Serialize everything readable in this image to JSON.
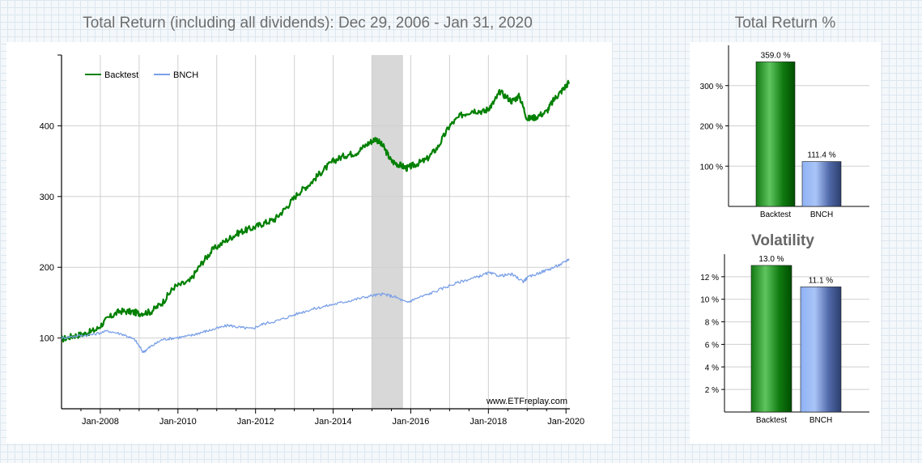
{
  "colors": {
    "backtest": "#008000",
    "bench": "#7aa0e8",
    "highlight": "#d8d8d8",
    "grid": "#cfcfcf"
  },
  "main_chart": {
    "title": "Total Return (including all dividends): Dec 29, 2006 - Jan 31, 2020",
    "watermark": "www.ETFreplay.com",
    "legend": [
      "Backtest",
      "BNCH"
    ]
  },
  "side_charts": {
    "total_return_title": "Total Return %",
    "volatility_title": "Volatility"
  },
  "chart_data": [
    {
      "id": "total-return-line",
      "type": "line",
      "title": "Total Return (including all dividends): Dec 29, 2006 - Jan 31, 2020",
      "xlabel": "",
      "ylabel": "",
      "x_tick_labels": [
        "Jan-2008",
        "Jan-2010",
        "Jan-2012",
        "Jan-2014",
        "Jan-2016",
        "Jan-2018",
        "Jan-2020"
      ],
      "x_tick_values": [
        2008,
        2010,
        2012,
        2014,
        2016,
        2018,
        2020
      ],
      "y_tick_labels": [
        "100",
        "200",
        "300",
        "400"
      ],
      "y_tick_values": [
        100,
        200,
        300,
        400
      ],
      "xlim": [
        2007.0,
        2020.1
      ],
      "ylim": [
        0,
        500
      ],
      "grid": true,
      "legend_position": "top-left",
      "highlight_region": [
        2015.0,
        2015.8
      ],
      "series": [
        {
          "name": "Backtest",
          "x": [
            2007.0,
            2007.3,
            2007.6,
            2007.9,
            2008.2,
            2008.5,
            2008.8,
            2009.0,
            2009.3,
            2009.6,
            2009.9,
            2010.3,
            2010.6,
            2010.9,
            2011.3,
            2011.6,
            2011.9,
            2012.2,
            2012.5,
            2012.8,
            2013.1,
            2013.4,
            2013.7,
            2014.0,
            2014.3,
            2014.6,
            2014.9,
            2015.1,
            2015.3,
            2015.5,
            2015.7,
            2015.9,
            2016.1,
            2016.4,
            2016.7,
            2017.0,
            2017.3,
            2017.6,
            2017.9,
            2018.1,
            2018.3,
            2018.6,
            2018.8,
            2019.0,
            2019.2,
            2019.5,
            2019.7,
            2019.9,
            2020.08
          ],
          "values": [
            98,
            103,
            106,
            112,
            128,
            138,
            137,
            135,
            137,
            150,
            172,
            180,
            205,
            225,
            240,
            250,
            255,
            262,
            268,
            285,
            305,
            318,
            335,
            350,
            358,
            362,
            375,
            382,
            370,
            350,
            345,
            340,
            345,
            352,
            370,
            400,
            415,
            422,
            420,
            430,
            448,
            435,
            442,
            410,
            412,
            420,
            438,
            450,
            462
          ]
        },
        {
          "name": "BNCH",
          "x": [
            2007.0,
            2007.4,
            2007.8,
            2008.2,
            2008.6,
            2008.9,
            2009.1,
            2009.3,
            2009.6,
            2009.9,
            2010.3,
            2010.6,
            2010.9,
            2011.3,
            2011.6,
            2011.9,
            2012.2,
            2012.6,
            2013.0,
            2013.4,
            2013.8,
            2014.2,
            2014.6,
            2015.0,
            2015.3,
            2015.6,
            2015.9,
            2016.1,
            2016.5,
            2016.9,
            2017.3,
            2017.7,
            2018.0,
            2018.3,
            2018.6,
            2018.9,
            2019.0,
            2019.3,
            2019.6,
            2019.9,
            2020.08
          ],
          "values": [
            100,
            103,
            105,
            110,
            105,
            97,
            80,
            88,
            98,
            100,
            103,
            108,
            112,
            118,
            115,
            113,
            120,
            125,
            133,
            140,
            145,
            150,
            155,
            160,
            162,
            158,
            150,
            155,
            163,
            172,
            180,
            186,
            192,
            188,
            190,
            180,
            185,
            192,
            198,
            205,
            212
          ]
        }
      ]
    },
    {
      "id": "total-return-bar",
      "type": "bar",
      "title": "Total Return %",
      "categories": [
        "Backtest",
        "BNCH"
      ],
      "values": [
        359.0,
        111.4
      ],
      "value_labels": [
        "359.0 %",
        "111.4 %"
      ],
      "y_tick_labels": [
        "100 %",
        "200 %",
        "300 %"
      ],
      "y_tick_values": [
        100,
        200,
        300
      ],
      "ylim": [
        0,
        400
      ],
      "xlabel": "",
      "ylabel": ""
    },
    {
      "id": "volatility-bar",
      "type": "bar",
      "title": "Volatility",
      "categories": [
        "Backtest",
        "BNCH"
      ],
      "values": [
        13.0,
        11.1
      ],
      "value_labels": [
        "13.0 %",
        "11.1 %"
      ],
      "y_tick_labels": [
        "2 %",
        "4 %",
        "6 %",
        "8 %",
        "10 %",
        "12 %"
      ],
      "y_tick_values": [
        2,
        4,
        6,
        8,
        10,
        12
      ],
      "ylim": [
        0,
        14
      ],
      "xlabel": "",
      "ylabel": ""
    }
  ]
}
